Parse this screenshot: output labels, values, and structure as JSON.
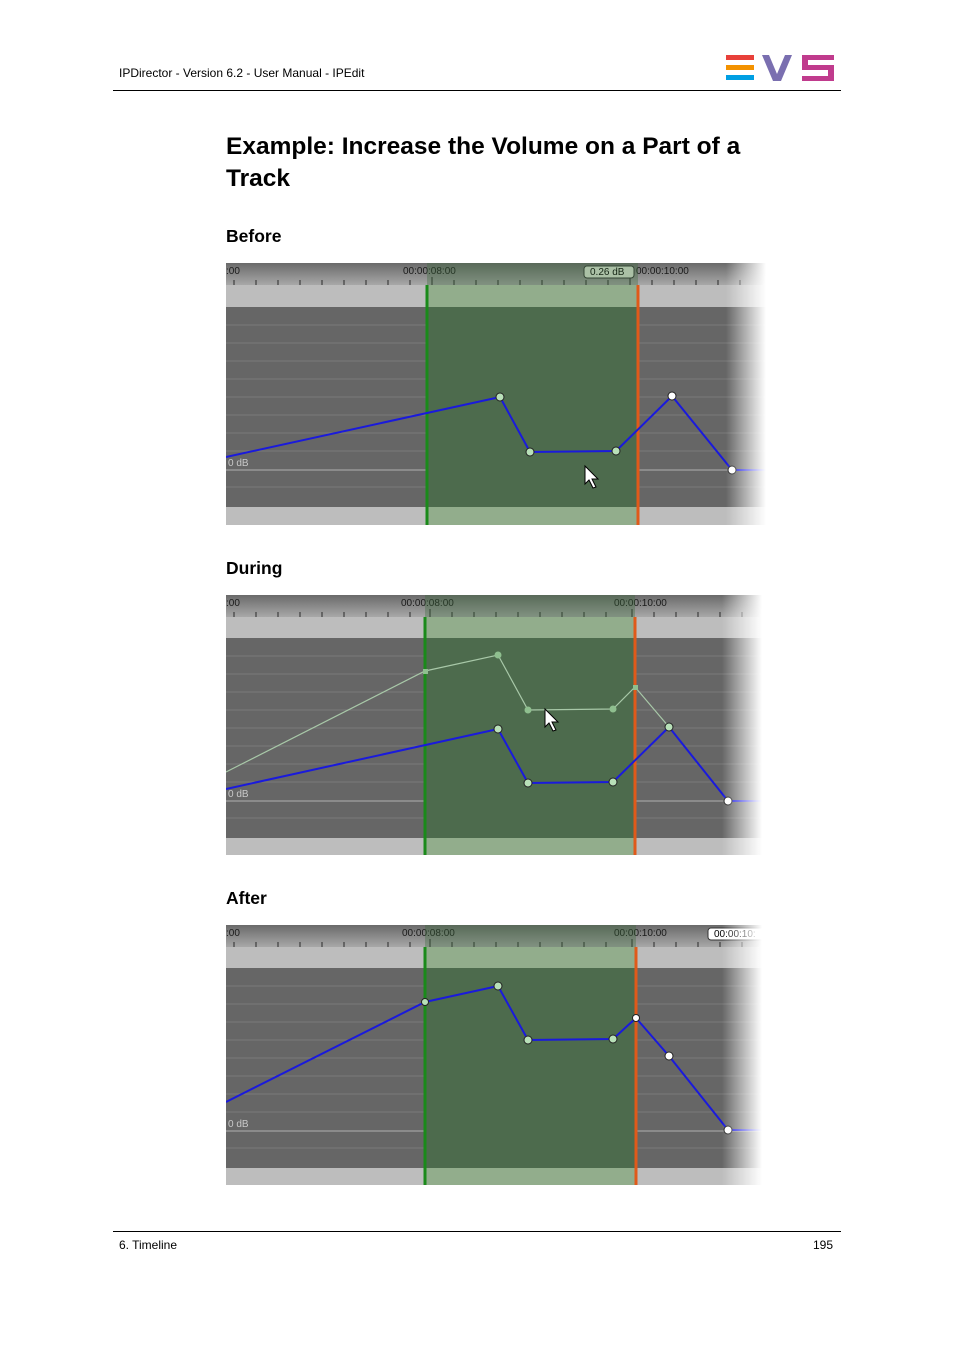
{
  "header": {
    "title": "IPDirector - Version 6.2 - User Manual - IPEdit"
  },
  "logo": {
    "name": "EVS",
    "colors": [
      "#e8403a",
      "#f39200",
      "#009fe3",
      "#2a4d9b",
      "#7a6fb0",
      "#c03b8d"
    ]
  },
  "page": {
    "title": "Example: Increase the Volume on a Part of a Track"
  },
  "sections": [
    {
      "label": "Before",
      "timecodes": [
        "00:00:08:00",
        "00:00:10:00"
      ],
      "edge_tc": ":00",
      "db_label": "0 dB",
      "badge": "0.26 dB"
    },
    {
      "label": "During",
      "timecodes": [
        "00:00:08:00",
        "00:00:10:00"
      ],
      "edge_tc": ":00",
      "db_label": "0 dB"
    },
    {
      "label": "After",
      "timecodes": [
        "00:00:08:00",
        "00:00:10:00"
      ],
      "edge_tc": ":00",
      "db_label": "0 dB",
      "badge": "00:00:10:"
    }
  ],
  "colors": {
    "envelope": "#1a1adc",
    "mark_in": "#1a8a1a",
    "mark_out": "#e05a1a",
    "selection": "#4d6b4d",
    "track_bg": "#666666"
  },
  "footer": {
    "chapter": "6. Timeline",
    "page_number": "195"
  }
}
